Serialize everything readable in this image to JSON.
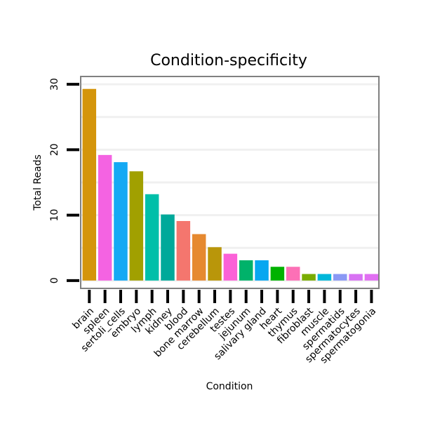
{
  "chart_data": {
    "type": "bar",
    "title": "Condition-specificity",
    "xlabel": "Condition",
    "ylabel": "Total Reads",
    "ylim": [
      -1.2,
      31.2
    ],
    "yticks": [
      0,
      10,
      20,
      30
    ],
    "grid": true,
    "legend": "none",
    "categories": [
      "brain",
      "spleen",
      "sertoli_cells",
      "embryo",
      "lymph",
      "kidney",
      "blood",
      "bone marrow",
      "cerebellum",
      "testes",
      "jejunum",
      "salivary gland",
      "heart",
      "thymus",
      "fibroblast",
      "muscle",
      "spermatids",
      "spermatocytes",
      "spermatogonia"
    ],
    "values": [
      29.3,
      19.2,
      18.1,
      16.7,
      13.2,
      10.1,
      9.1,
      7.1,
      5.1,
      4.1,
      3.1,
      3.1,
      2.1,
      2.1,
      1.0,
      1.0,
      1.0,
      1.0,
      1.0
    ],
    "colors": [
      "#D4950B",
      "#F463E2",
      "#14A9F4",
      "#A1A000",
      "#00BFA9",
      "#00A99A",
      "#F4766E",
      "#E68930",
      "#B9960A",
      "#FB61D7",
      "#00B26A",
      "#07A7F0",
      "#00B200",
      "#FC70B6",
      "#79AC00",
      "#00B7DA",
      "#8A98F4",
      "#D872F3",
      "#E16FF2"
    ]
  }
}
